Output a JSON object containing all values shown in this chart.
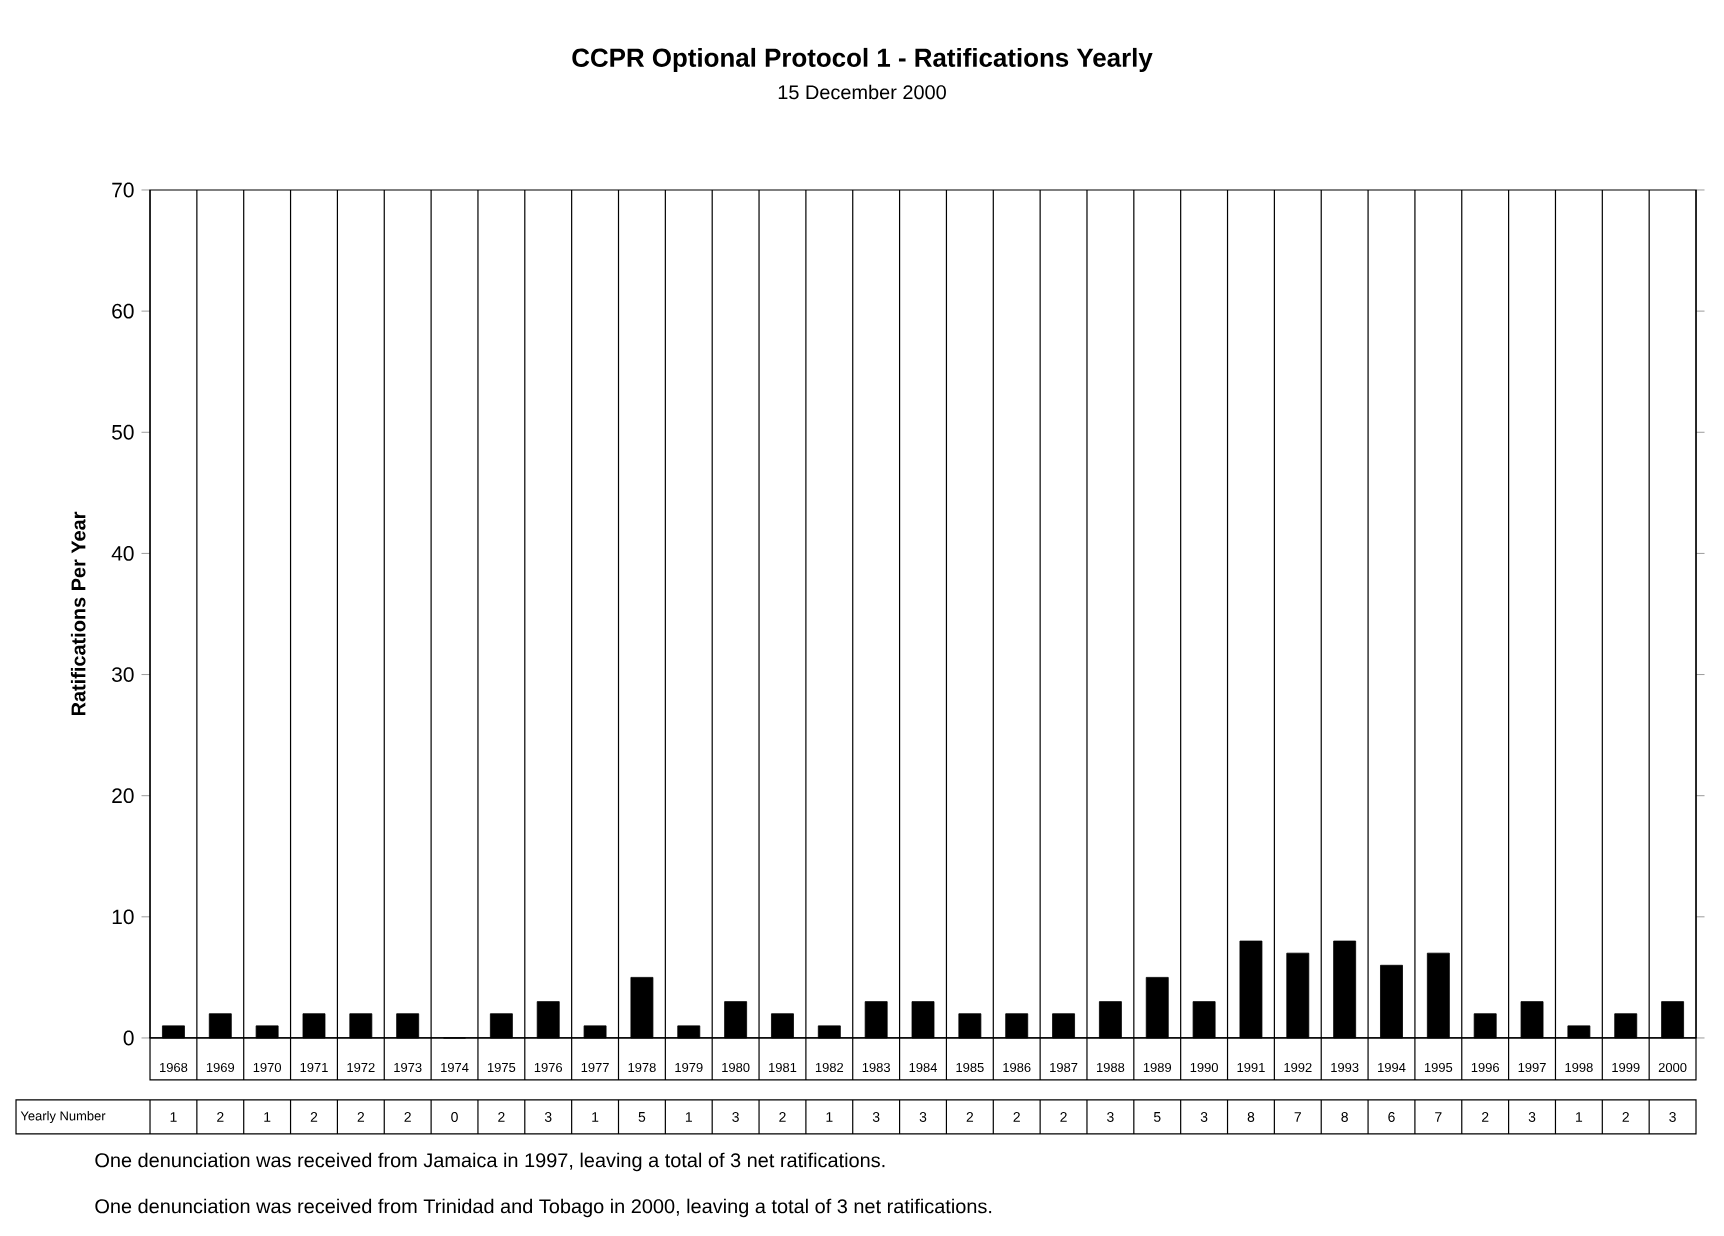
{
  "chart_data": {
    "type": "bar",
    "title": "CCPR Optional Protocol 1 - Ratifications Yearly",
    "subtitle": "15 December 2000",
    "ylabel": "Ratifications Per Year",
    "categories": [
      "1968",
      "1969",
      "1970",
      "1971",
      "1972",
      "1973",
      "1974",
      "1975",
      "1976",
      "1977",
      "1978",
      "1979",
      "1980",
      "1981",
      "1982",
      "1983",
      "1984",
      "1985",
      "1986",
      "1987",
      "1988",
      "1989",
      "1990",
      "1991",
      "1992",
      "1993",
      "1994",
      "1995",
      "1996",
      "1997",
      "1998",
      "1999",
      "2000"
    ],
    "values": [
      1,
      2,
      1,
      2,
      2,
      2,
      0,
      2,
      3,
      1,
      5,
      1,
      3,
      2,
      1,
      3,
      3,
      2,
      2,
      2,
      3,
      5,
      3,
      8,
      7,
      8,
      6,
      7,
      2,
      3,
      1,
      2,
      3
    ],
    "color": "#000000",
    "ylim": [
      0,
      70
    ],
    "yticks": [
      0,
      10,
      20,
      30,
      40,
      50,
      60,
      70
    ],
    "grid": "x",
    "data_labels": true,
    "annotations": [
      "Yearly Number",
      "One denunciation was received from Jamaica in 1997, leaving a total of 3 net ratifications.",
      "One denunciation was received from Trinidad and Tobago in 2000, leaving a total of 3 net ratifications."
    ]
  }
}
